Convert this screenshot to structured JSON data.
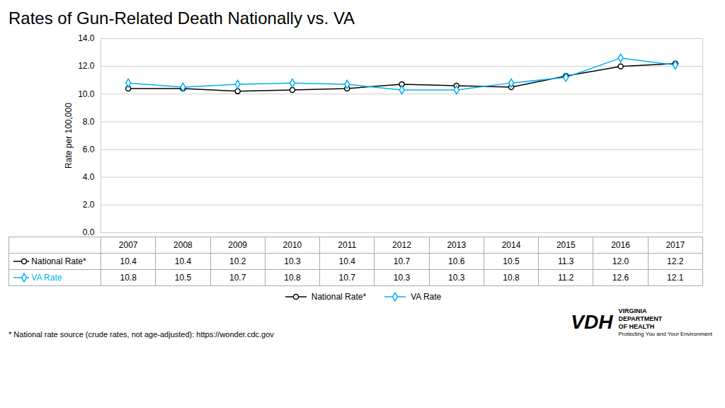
{
  "chart_data": {
    "type": "line",
    "title": "Rates of Gun-Related Death Nationally vs. VA",
    "ylabel": "Rate per 100,000",
    "x": [
      2007,
      2008,
      2009,
      2010,
      2011,
      2012,
      2013,
      2014,
      2015,
      2016,
      2017
    ],
    "series": [
      {
        "name": "National Rate*",
        "color": "#000000",
        "marker": "circle",
        "line_style": "solid",
        "values": [
          10.4,
          10.4,
          10.2,
          10.3,
          10.4,
          10.7,
          10.6,
          10.5,
          11.3,
          12.0,
          12.2
        ],
        "value_labels": [
          "10.4",
          "10.4",
          "10.2",
          "10.3",
          "10.4",
          "10.7",
          "10.6",
          "10.5",
          "11.3",
          "12.0",
          "12.2"
        ]
      },
      {
        "name": "VA Rate",
        "color": "#00B0F0",
        "marker": "diamond",
        "line_style": "solid",
        "values": [
          10.8,
          10.5,
          10.7,
          10.8,
          10.7,
          10.3,
          10.3,
          10.8,
          11.2,
          12.6,
          12.1
        ]
      }
    ],
    "xlim": [
      2006.5,
      2017.5
    ],
    "ylim": [
      0.0,
      14.0
    ],
    "yticks": [
      {
        "value": 0,
        "label": "0.0"
      },
      {
        "value": 2,
        "label": "2.0"
      },
      {
        "value": 4,
        "label": "4.0"
      },
      {
        "value": 6,
        "label": "6.0"
      },
      {
        "value": 8,
        "label": "8.0"
      },
      {
        "value": 10,
        "label": "10.0"
      },
      {
        "value": 12,
        "label": "12.0"
      },
      {
        "value": 14,
        "label": "14.0"
      }
    ],
    "grid": true,
    "legend": "bottom",
    "data_labels": true,
    "tick_labels": "y",
    "annotations": [
      "* National rate source (crude rates, not age-adjusted): https://wonder.cdc.gov",
      "VDH",
      "VIRGINIA",
      "DEPARTMENT",
      "OF HEALTH",
      "Protecting You and Your Environment"
    ]
  }
}
